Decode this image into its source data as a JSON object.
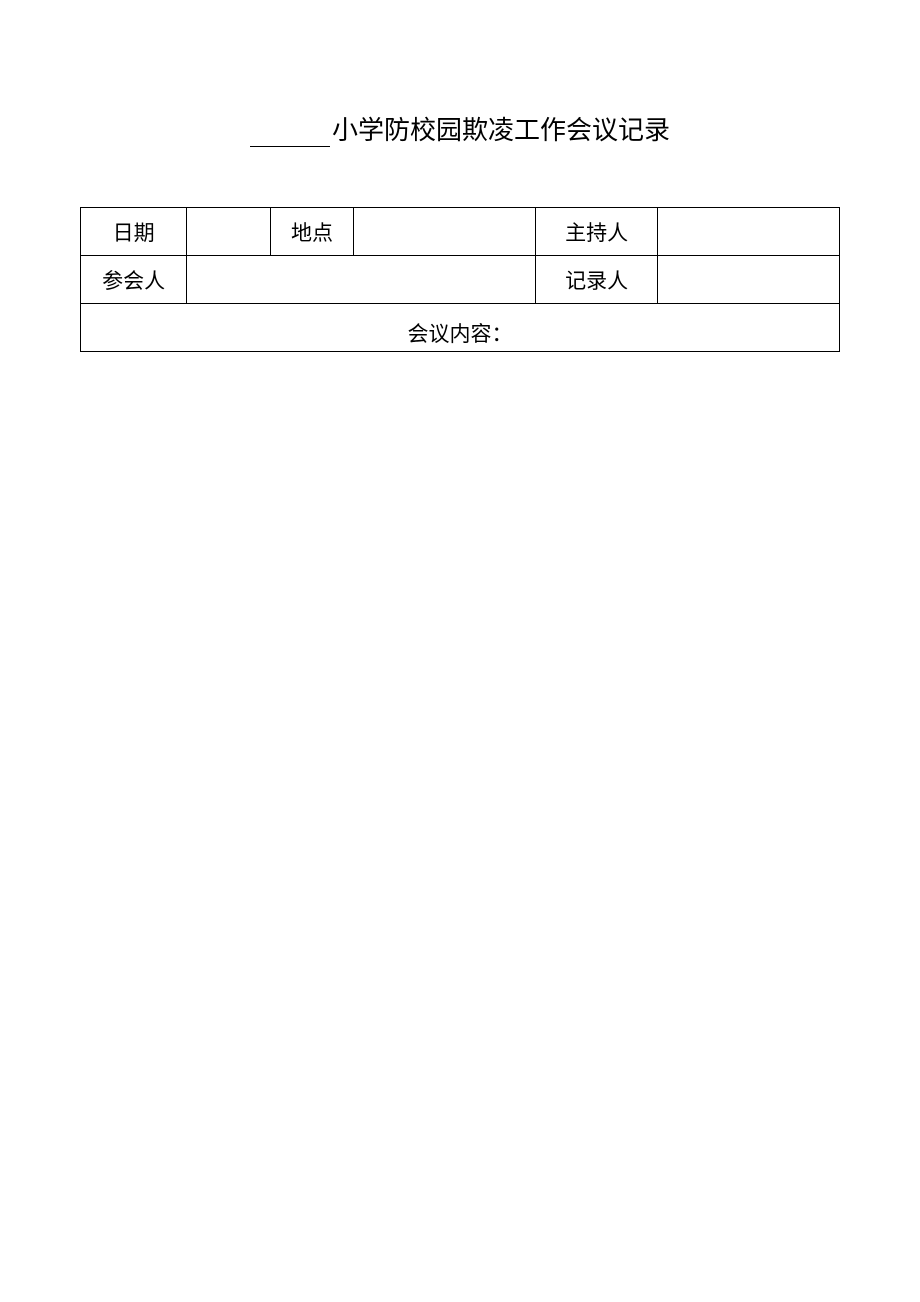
{
  "document": {
    "title_suffix": "小学防校园欺凌工作会议记录",
    "table": {
      "row1": {
        "date_label": "日期",
        "date_value": "",
        "location_label": "地点",
        "location_value": "",
        "host_label": "主持人",
        "host_value": ""
      },
      "row2": {
        "attendee_label": "参会人",
        "attendee_value": "",
        "recorder_label": "记录人",
        "recorder_value": ""
      },
      "content_label": "会议内容："
    },
    "style": {
      "background_color": "#ffffff",
      "border_color": "#000000",
      "text_color": "#000000",
      "title_fontsize": 26,
      "cell_fontsize": 21,
      "border_width": 1.5
    }
  }
}
